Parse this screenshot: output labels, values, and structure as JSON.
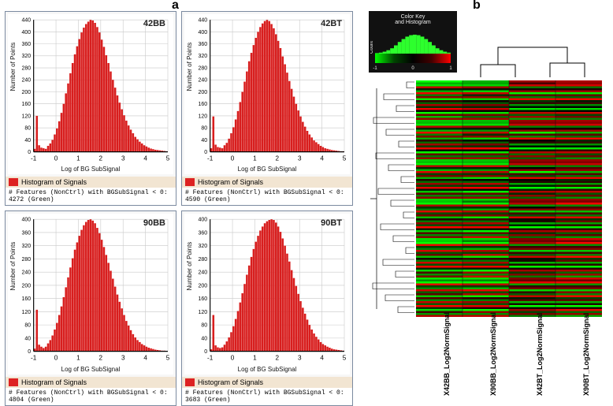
{
  "labels": {
    "a": "a",
    "b": "b"
  },
  "panel_a": {
    "type": "histogram-grid",
    "xlabel": "Log of BG SubSignal",
    "ylabel": "Number of Points",
    "footer_title": "Histogram of Signals",
    "bar_color": "#d81e1e",
    "grid_color": "#c8c8c8",
    "background": "#ffffff",
    "x_ticks": [
      -1,
      0,
      1,
      2,
      3,
      4,
      5
    ],
    "y_ticks": [
      0,
      40,
      80,
      120,
      160,
      200,
      240,
      280,
      320,
      360,
      400,
      440
    ],
    "histograms": [
      {
        "id": "42BB",
        "features_lt0": 4272,
        "ymax": 440,
        "bins": [
          10,
          120,
          22,
          14,
          12,
          10,
          20,
          28,
          40,
          58,
          78,
          102,
          130,
          160,
          195,
          228,
          262,
          296,
          325,
          352,
          376,
          398,
          414,
          426,
          434,
          440,
          438,
          430,
          416,
          398,
          374,
          350,
          322,
          296,
          268,
          240,
          214,
          188,
          164,
          142,
          122,
          104,
          88,
          74,
          62,
          50,
          42,
          34,
          28,
          22,
          18,
          14,
          11,
          9,
          7,
          6,
          5,
          4,
          3,
          2
        ]
      },
      {
        "id": "42BT",
        "features_lt0": 4590,
        "ymax": 440,
        "bins": [
          12,
          118,
          24,
          16,
          14,
          12,
          22,
          30,
          44,
          62,
          82,
          108,
          136,
          166,
          200,
          234,
          268,
          302,
          330,
          356,
          380,
          400,
          416,
          428,
          436,
          440,
          436,
          426,
          412,
          392,
          370,
          346,
          318,
          292,
          264,
          236,
          210,
          184,
          160,
          138,
          118,
          100,
          84,
          70,
          58,
          48,
          38,
          32,
          26,
          20,
          16,
          12,
          10,
          8,
          6,
          5,
          4,
          3,
          2,
          2
        ]
      },
      {
        "id": "90BB",
        "features_lt0": 4804,
        "ymax": 400,
        "bins": [
          8,
          126,
          20,
          14,
          10,
          14,
          24,
          34,
          48,
          66,
          86,
          110,
          136,
          164,
          194,
          224,
          254,
          282,
          308,
          330,
          350,
          368,
          382,
          392,
          398,
          400,
          396,
          388,
          374,
          358,
          338,
          316,
          292,
          268,
          244,
          220,
          196,
          172,
          150,
          130,
          110,
          92,
          78,
          64,
          52,
          42,
          34,
          28,
          22,
          18,
          14,
          11,
          9,
          7,
          5,
          4,
          3,
          2,
          2,
          1
        ]
      },
      {
        "id": "90BT",
        "features_lt0": 3683,
        "ymax": 400,
        "bins": [
          6,
          110,
          18,
          12,
          10,
          12,
          20,
          30,
          42,
          58,
          76,
          98,
          122,
          148,
          176,
          204,
          232,
          260,
          286,
          310,
          332,
          350,
          366,
          378,
          388,
          394,
          398,
          400,
          398,
          390,
          378,
          362,
          342,
          320,
          296,
          272,
          246,
          222,
          198,
          174,
          152,
          132,
          114,
          96,
          80,
          66,
          54,
          44,
          36,
          28,
          22,
          18,
          14,
          11,
          8,
          6,
          5,
          4,
          3,
          2
        ]
      }
    ]
  },
  "panel_b": {
    "type": "heatmap",
    "color_key": {
      "title": "Color Key",
      "sub": "and Histogram",
      "axis": "Row Z-Score",
      "ticks": [
        -1,
        0,
        1
      ],
      "gradient": [
        "#00ff00",
        "#004400",
        "#000000",
        "#440000",
        "#ff0000"
      ],
      "hist": [
        2,
        4,
        8,
        14,
        22,
        34,
        48,
        60,
        70,
        76,
        78,
        76,
        70,
        60,
        48,
        34,
        22,
        14,
        8,
        4
      ],
      "count_label": "Count"
    },
    "columns": [
      "X42BB_Log2NormSignal",
      "X90BB_Log2NormSignal",
      "X42BT_Log2NormSignal",
      "X90BT_Log2NormSignal"
    ],
    "dendro_top": {
      "merge_order": [
        [
          0,
          1
        ],
        [
          2,
          3
        ]
      ],
      "heights": [
        0.35,
        0.38,
        1.0
      ]
    },
    "n_rows": 120,
    "cell_colors_rgb": "gradient_green_black_red",
    "heat_rows": [
      [
        -0.9,
        -0.8,
        0.6,
        0.7
      ],
      [
        -0.7,
        -0.6,
        0.4,
        0.5
      ],
      [
        -1.0,
        -0.9,
        0.8,
        0.9
      ],
      [
        0.8,
        0.7,
        -0.6,
        -0.5
      ],
      [
        -0.2,
        -0.1,
        0.1,
        0.2
      ],
      [
        -0.6,
        -0.7,
        0.5,
        0.6
      ],
      [
        0.9,
        0.8,
        -0.9,
        -0.8
      ],
      [
        -0.4,
        -0.3,
        0.3,
        0.4
      ],
      [
        0.5,
        0.6,
        -0.4,
        -0.5
      ],
      [
        -0.8,
        -0.9,
        0.9,
        1.0
      ],
      [
        0.2,
        0.1,
        -0.1,
        -0.2
      ],
      [
        -0.5,
        -0.4,
        0.2,
        0.3
      ],
      [
        0.7,
        0.6,
        -0.7,
        -0.6
      ],
      [
        -0.3,
        -0.2,
        0.0,
        0.1
      ],
      [
        1.0,
        0.9,
        -1.0,
        -0.9
      ],
      [
        -0.1,
        0.0,
        0.0,
        0.1
      ],
      [
        -0.9,
        -1.0,
        0.7,
        0.8
      ],
      [
        0.4,
        0.5,
        -0.3,
        -0.4
      ],
      [
        -0.6,
        -0.5,
        0.6,
        0.5
      ],
      [
        0.6,
        0.7,
        -0.5,
        -0.6
      ]
    ]
  }
}
